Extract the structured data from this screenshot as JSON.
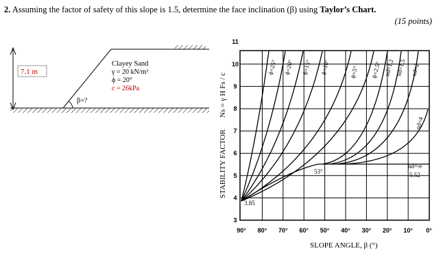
{
  "question": {
    "number": "2.",
    "text": "Assuming the factor of safety of this slope is 1.5, determine the face inclination (β) using",
    "emphasis": "Taylor’s Chart.",
    "points": "(15 points)"
  },
  "slope_diagram": {
    "height": "7.1 m",
    "soil": "Clayey Sand",
    "unit_weight": "γ = 20 kN/m³",
    "friction_angle": "ϕ = 20°",
    "cohesion": "c = 26kPa",
    "angle": "β=?"
  },
  "taylor_chart": {
    "y_axis_title": "STABILITY FACTOR",
    "formula": "Ns = γ H Fs / c",
    "yticks": [
      "3",
      "4",
      "5",
      "6",
      "7",
      "8",
      "9",
      "10",
      "11"
    ],
    "xticks": [
      "90°",
      "80°",
      "70°",
      "60°",
      "50°",
      "40°",
      "30°",
      "20°",
      "10°",
      "0°"
    ],
    "x_axis_title": "SLOPE ANGLE, β (°)",
    "curve_labels": [
      "ϕ=25°",
      "ϕ=20°",
      "ϕ=15°",
      "ϕ=10°",
      "ϕ=5°",
      "ϕ=2.5°",
      "nd=1.2",
      "nd=1.5",
      "nd=2",
      "nd=4",
      "nd=∞"
    ],
    "annotations": [
      "53°",
      "5.52",
      "3.85"
    ]
  }
}
